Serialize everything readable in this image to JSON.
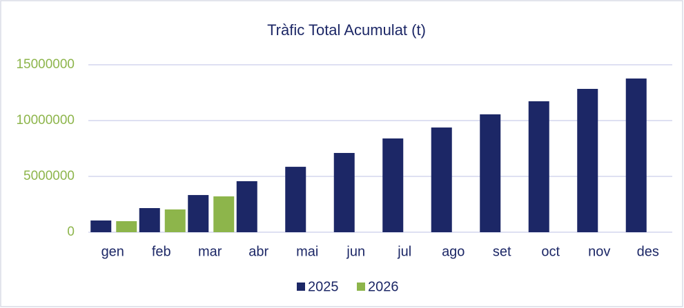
{
  "chart_data": {
    "type": "bar",
    "title": "Tràfic Total Acumulat (t)",
    "categories": [
      "gen",
      "feb",
      "mar",
      "abr",
      "mai",
      "jun",
      "jul",
      "ago",
      "set",
      "oct",
      "nov",
      "des"
    ],
    "series": [
      {
        "name": "2025",
        "color": "#1c2766",
        "values": [
          1050000,
          2160000,
          3330000,
          4570000,
          5860000,
          7100000,
          8400000,
          9380000,
          10560000,
          11730000,
          12840000,
          13770000
        ]
      },
      {
        "name": "2026",
        "color": "#8db54b",
        "values": [
          990000,
          2040000,
          3210000,
          null,
          null,
          null,
          null,
          null,
          null,
          null,
          null,
          null
        ]
      }
    ],
    "ylim": [
      0,
      15000000
    ],
    "yticks": [
      0,
      5000000,
      10000000,
      15000000
    ],
    "grid": true,
    "legend": "bottom"
  }
}
